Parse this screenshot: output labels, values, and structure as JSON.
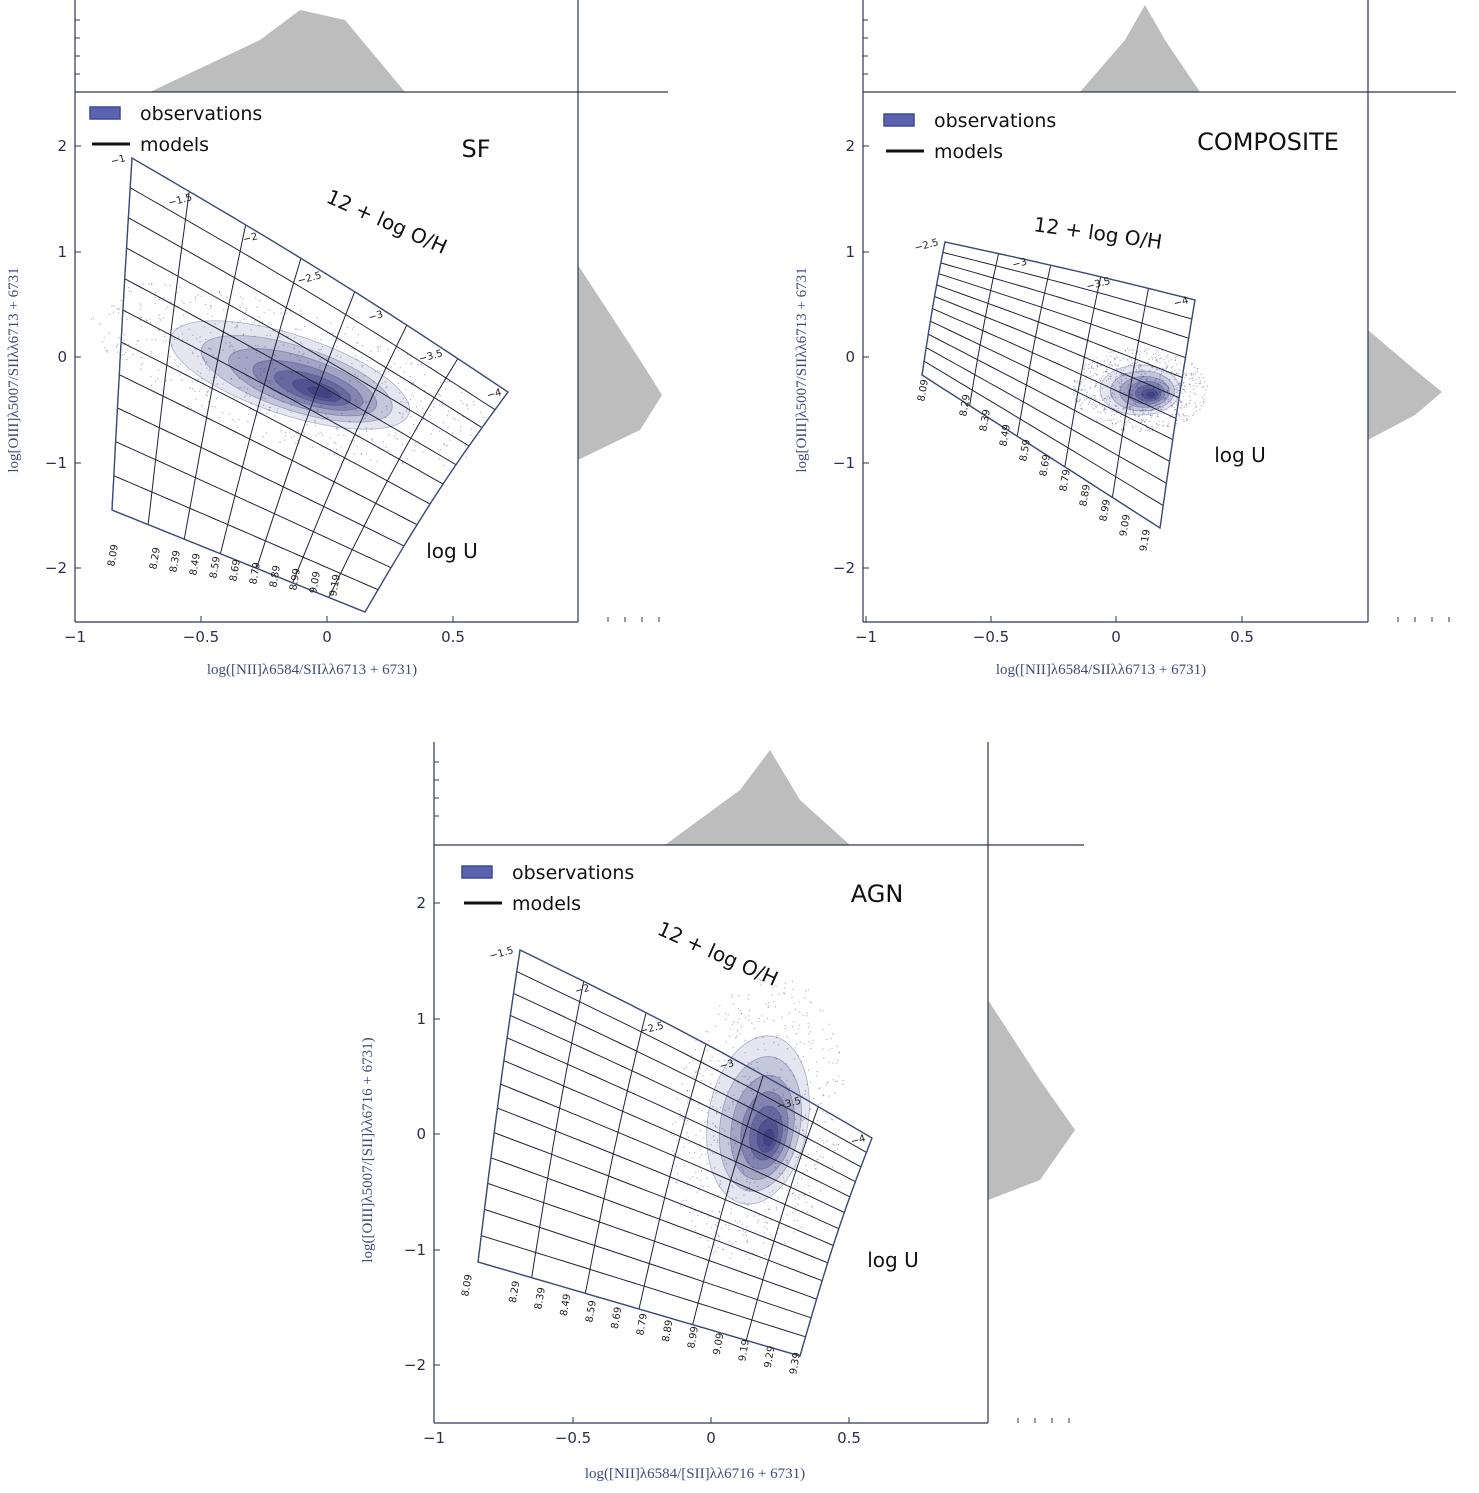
{
  "colors": {
    "axis": "#2d3656",
    "axis_label": "#3d4b7a",
    "grid_line": "#1f2235",
    "observations": "#2b2f78",
    "observations_legend": "#5b63b0",
    "histogram": "#bdbdbd"
  },
  "chart_data": [
    {
      "type": "scatter",
      "panel": "SF",
      "title": "SF",
      "xlabel": "log([NII]λ6584/SIIλλ6713 + 6731)",
      "ylabel": "log[OIII]λ5007/SIIλλ6713 + 6731",
      "xlim": [
        -1,
        1
      ],
      "ylim": [
        -2.5,
        2.5
      ],
      "xticks": [
        "−1",
        "−0.5",
        "0",
        "0.5"
      ],
      "yticks": [
        "−2",
        "−1",
        "0",
        "1",
        "2"
      ],
      "legend": [
        "observations",
        "models"
      ],
      "legend_position": "top-left",
      "grid_label_metallicity": "12 + log O/H",
      "grid_label_ionization": "log U",
      "log_u_values": [
        "−1",
        "−1.5",
        "−2",
        "−2.5",
        "−3",
        "−3.5",
        "−4"
      ],
      "metallicity_values": [
        "8.09",
        "8.29",
        "8.39",
        "8.49",
        "8.59",
        "8.69",
        "8.79",
        "8.89",
        "8.99",
        "9.09",
        "9.19"
      ],
      "observations_peak": {
        "x": 0.1,
        "y": -0.5
      },
      "marginal_histograms": true
    },
    {
      "type": "scatter",
      "panel": "COMPOSITE",
      "title": "COMPOSITE",
      "xlabel": "log([NII]λ6584/SIIλλ6713 + 6731)",
      "ylabel": "log[OIII]λ5007/SIIλλ6713 + 6731",
      "xlim": [
        -1,
        1
      ],
      "ylim": [
        -2.5,
        2.5
      ],
      "xticks": [
        "−1",
        "−0.5",
        "0",
        "0.5"
      ],
      "yticks": [
        "−2",
        "−1",
        "0",
        "1",
        "2"
      ],
      "legend": [
        "observations",
        "models"
      ],
      "legend_position": "top-left",
      "grid_label_metallicity": "12 + log O/H",
      "grid_label_ionization": "log U",
      "log_u_values": [
        "−2.5",
        "−3",
        "−3.5",
        "−4"
      ],
      "metallicity_values": [
        "8.09",
        "8.29",
        "8.39",
        "8.49",
        "8.59",
        "8.69",
        "8.79",
        "8.89",
        "8.99",
        "9.09",
        "9.19"
      ],
      "observations_peak": {
        "x": 0.12,
        "y": -0.3
      },
      "marginal_histograms": true
    },
    {
      "type": "scatter",
      "panel": "AGN",
      "title": "AGN",
      "xlabel": "log([NII]λ6584/[SII]λλ6716 + 6731)",
      "ylabel": "log([OIII]λ5007/[SII]λλ6716 + 6731)",
      "xlim": [
        -1,
        1
      ],
      "ylim": [
        -2.5,
        2.5
      ],
      "xticks": [
        "−1",
        "−0.5",
        "0",
        "0.5"
      ],
      "yticks": [
        "−2",
        "−1",
        "0",
        "1",
        "2"
      ],
      "legend": [
        "observations",
        "models"
      ],
      "legend_position": "top-left",
      "grid_label_metallicity": "12 + log O/H",
      "grid_label_ionization": "log U",
      "log_u_values": [
        "−1.5",
        "−2",
        "−2.5",
        "−3",
        "−3.5",
        "−4"
      ],
      "metallicity_values": [
        "8.09",
        "8.29",
        "8.39",
        "8.49",
        "8.59",
        "8.69",
        "8.79",
        "8.89",
        "8.99",
        "9.09",
        "9.19",
        "9.29",
        "9.39"
      ],
      "observations_peak": {
        "x": 0.18,
        "y": 0.0
      },
      "marginal_histograms": true
    }
  ]
}
